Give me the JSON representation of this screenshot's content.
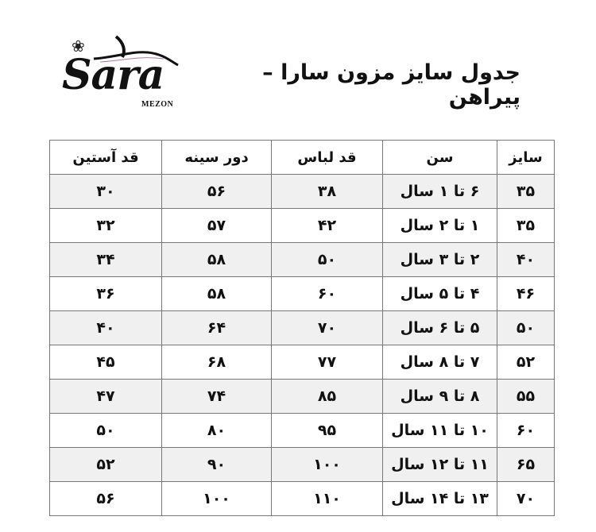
{
  "logo": {
    "text": "Sara",
    "subtext": "MEZON"
  },
  "title": "جدول سایز مزون سارا – پیراهن",
  "table": {
    "headers": [
      "سایز",
      "سن",
      "قد لباس",
      "دور سینه",
      "قد آستین"
    ],
    "rows": [
      [
        "۳۵",
        "۶ تا ۱ سال",
        "۳۸",
        "۵۶",
        "۳۰"
      ],
      [
        "۳۵",
        "۱ تا ۲ سال",
        "۴۲",
        "۵۷",
        "۳۲"
      ],
      [
        "۴۰",
        "۲ تا ۳ سال",
        "۵۰",
        "۵۸",
        "۳۴"
      ],
      [
        "۴۶",
        "۴ تا ۵ سال",
        "۶۰",
        "۵۸",
        "۳۶"
      ],
      [
        "۵۰",
        "۵ تا ۶ سال",
        "۷۰",
        "۶۴",
        "۴۰"
      ],
      [
        "۵۲",
        "۷ تا ۸ سال",
        "۷۷",
        "۶۸",
        "۴۵"
      ],
      [
        "۵۵",
        "۸ تا ۹ سال",
        "۸۵",
        "۷۴",
        "۴۷"
      ],
      [
        "۶۰",
        "۱۰ تا ۱۱ سال",
        "۹۵",
        "۸۰",
        "۵۰"
      ],
      [
        "۶۵",
        "۱۱ تا ۱۲ سال",
        "۱۰۰",
        "۹۰",
        "۵۲"
      ],
      [
        "۷۰",
        "۱۳ تا ۱۴ سال",
        "۱۱۰",
        "۱۰۰",
        "۵۶"
      ]
    ]
  },
  "colors": {
    "row_shade": "#f0f0f0",
    "border": "#777777"
  }
}
